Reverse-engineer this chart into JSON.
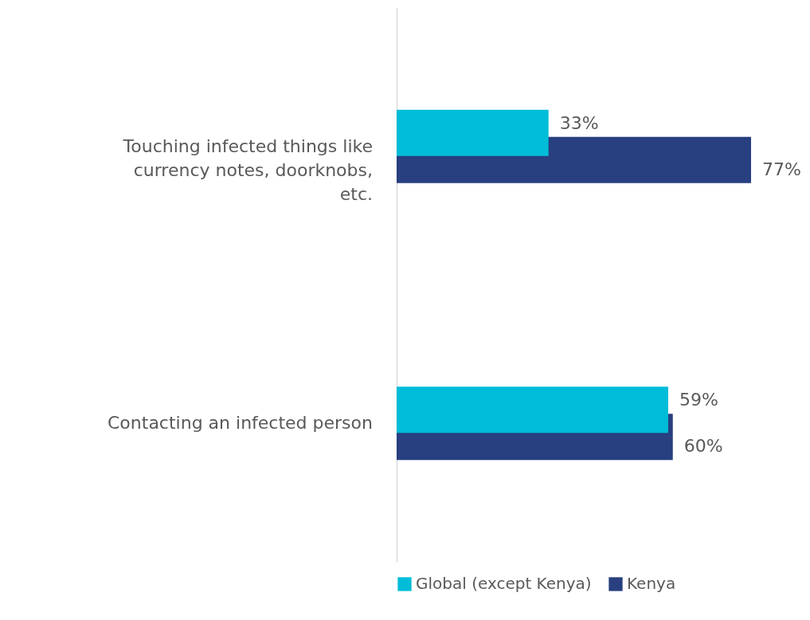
{
  "chart_data": {
    "type": "bar",
    "orientation": "horizontal",
    "categories": [
      "Touching infected things like currency notes, doorknobs, etc.",
      "Contacting an infected person"
    ],
    "series": [
      {
        "name": "Global (except Kenya)",
        "color": "#00bcd8",
        "values": [
          33,
          59
        ],
        "value_labels": [
          "33%",
          "59%"
        ]
      },
      {
        "name": "Kenya",
        "color": "#283f80",
        "values": [
          77,
          60
        ],
        "value_labels": [
          "77%",
          "60%"
        ]
      }
    ],
    "legend": "bottom",
    "grid": false
  }
}
